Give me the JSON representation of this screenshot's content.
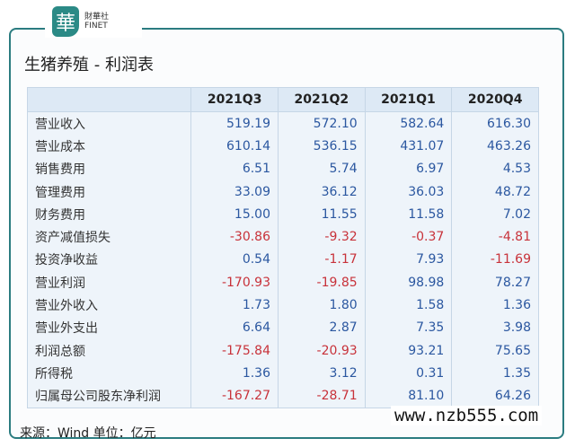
{
  "brand": {
    "logo_glyph": "華",
    "name_cn": "財華社",
    "name_en": "FINET",
    "color": "#2b8a86"
  },
  "title": "生猪养殖 - 利润表",
  "table": {
    "headers": [
      "",
      "2021Q3",
      "2021Q2",
      "2021Q1",
      "2020Q4"
    ],
    "rows": [
      {
        "label": "营业收入",
        "values": [
          "519.19",
          "572.10",
          "582.64",
          "616.30"
        ]
      },
      {
        "label": "营业成本",
        "values": [
          "610.14",
          "536.15",
          "431.07",
          "463.26"
        ]
      },
      {
        "label": "销售费用",
        "values": [
          "6.51",
          "5.74",
          "6.97",
          "4.53"
        ]
      },
      {
        "label": "管理费用",
        "values": [
          "33.09",
          "36.12",
          "36.03",
          "48.72"
        ]
      },
      {
        "label": "财务费用",
        "values": [
          "15.00",
          "11.55",
          "11.58",
          "7.02"
        ]
      },
      {
        "label": "资产减值损失",
        "values": [
          "-30.86",
          "-9.32",
          "-0.37",
          "-4.81"
        ]
      },
      {
        "label": "投资净收益",
        "values": [
          "0.54",
          "-1.17",
          "7.93",
          "-11.69"
        ]
      },
      {
        "label": "营业利润",
        "values": [
          "-170.93",
          "-19.85",
          "98.98",
          "78.27"
        ]
      },
      {
        "label": "营业外收入",
        "values": [
          "1.73",
          "1.80",
          "1.58",
          "1.36"
        ]
      },
      {
        "label": "营业外支出",
        "values": [
          "6.64",
          "2.87",
          "7.35",
          "3.98"
        ]
      },
      {
        "label": "利润总额",
        "values": [
          "-175.84",
          "-20.93",
          "93.21",
          "75.65"
        ]
      },
      {
        "label": "所得税",
        "values": [
          "1.36",
          "3.12",
          "0.31",
          "1.35"
        ]
      },
      {
        "label": "归属母公司股东净利润",
        "values": [
          "-167.27",
          "-28.71",
          "81.10",
          "64.26"
        ]
      }
    ],
    "colors": {
      "positive": "#2b57a0",
      "negative": "#c8323a"
    }
  },
  "watermark": "www.nzb555.com",
  "source": "来源：Wind 单位：亿元"
}
